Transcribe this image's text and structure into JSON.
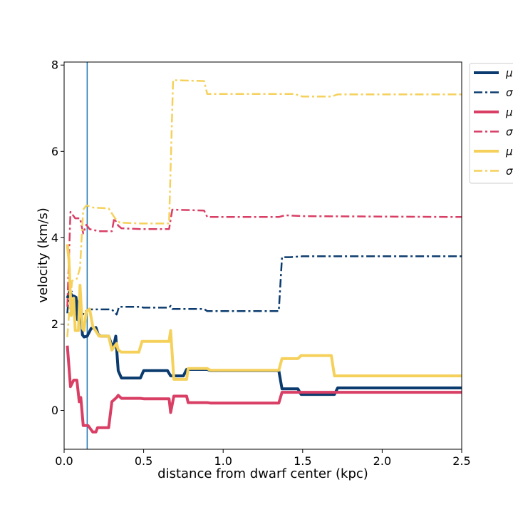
{
  "chart_data": {
    "type": "line",
    "title": "",
    "xlabel": "distance from dwarf center (kpc)",
    "ylabel": "velocity (km/s)",
    "xlim": [
      0.0,
      2.5
    ],
    "ylim": [
      -0.9,
      8.07
    ],
    "xticks": [
      0.0,
      0.5,
      1.0,
      1.5,
      2.0,
      2.5
    ],
    "xtick_labels": [
      "0.0",
      "0.5",
      "1.0",
      "1.5",
      "2.0",
      "2.5"
    ],
    "yticks": [
      0,
      2,
      4,
      6,
      8
    ],
    "ytick_labels": [
      "0",
      "2",
      "4",
      "6",
      "8"
    ],
    "grid": false,
    "legend_position": "outside right, top",
    "vertical_line": {
      "x": 0.145,
      "color": "#1f77b4"
    },
    "series": [
      {
        "name": "μ",
        "color": "#0b3b6e",
        "style": "solid",
        "width": 4,
        "points": [
          [
            0.02,
            2.6
          ],
          [
            0.035,
            2.75
          ],
          [
            0.05,
            2.65
          ],
          [
            0.06,
            2.65
          ],
          [
            0.075,
            2.62
          ],
          [
            0.085,
            2.1
          ],
          [
            0.095,
            2.55
          ],
          [
            0.105,
            2.35
          ],
          [
            0.115,
            1.75
          ],
          [
            0.125,
            1.7
          ],
          [
            0.145,
            1.72
          ],
          [
            0.17,
            1.9
          ],
          [
            0.2,
            1.92
          ],
          [
            0.215,
            1.75
          ],
          [
            0.23,
            1.72
          ],
          [
            0.28,
            1.72
          ],
          [
            0.3,
            1.5
          ],
          [
            0.315,
            1.55
          ],
          [
            0.325,
            1.72
          ],
          [
            0.34,
            0.92
          ],
          [
            0.36,
            0.75
          ],
          [
            0.48,
            0.75
          ],
          [
            0.5,
            0.92
          ],
          [
            0.65,
            0.92
          ],
          [
            0.67,
            0.8
          ],
          [
            0.75,
            0.8
          ],
          [
            0.77,
            0.95
          ],
          [
            0.9,
            0.95
          ],
          [
            0.92,
            0.92
          ],
          [
            1.35,
            0.92
          ],
          [
            1.37,
            0.5
          ],
          [
            1.47,
            0.5
          ],
          [
            1.49,
            0.37
          ],
          [
            1.7,
            0.37
          ],
          [
            1.72,
            0.52
          ],
          [
            2.5,
            0.52
          ]
        ]
      },
      {
        "name": "σ",
        "color": "#0b3b6e",
        "style": "dashdot",
        "width": 2.5,
        "points": [
          [
            0.02,
            2.25
          ],
          [
            0.03,
            2.75
          ],
          [
            0.05,
            2.75
          ],
          [
            0.06,
            2.4
          ],
          [
            0.08,
            2.35
          ],
          [
            0.11,
            2.1
          ],
          [
            0.125,
            2.3
          ],
          [
            0.145,
            2.3
          ],
          [
            0.16,
            2.34
          ],
          [
            0.3,
            2.34
          ],
          [
            0.33,
            2.22
          ],
          [
            0.345,
            2.4
          ],
          [
            0.48,
            2.4
          ],
          [
            0.5,
            2.38
          ],
          [
            0.66,
            2.38
          ],
          [
            0.67,
            2.42
          ],
          [
            0.68,
            2.35
          ],
          [
            0.88,
            2.35
          ],
          [
            0.9,
            2.3
          ],
          [
            1.35,
            2.3
          ],
          [
            1.37,
            3.55
          ],
          [
            1.42,
            3.55
          ],
          [
            1.5,
            3.57
          ],
          [
            2.5,
            3.57
          ]
        ]
      },
      {
        "name": "μ",
        "color": "#d93f65",
        "style": "solid",
        "width": 4,
        "points": [
          [
            0.02,
            1.5
          ],
          [
            0.04,
            0.55
          ],
          [
            0.06,
            0.7
          ],
          [
            0.08,
            0.7
          ],
          [
            0.095,
            0.2
          ],
          [
            0.105,
            0.3
          ],
          [
            0.12,
            -0.35
          ],
          [
            0.15,
            -0.35
          ],
          [
            0.18,
            -0.5
          ],
          [
            0.2,
            -0.5
          ],
          [
            0.21,
            -0.4
          ],
          [
            0.28,
            -0.4
          ],
          [
            0.3,
            0.2
          ],
          [
            0.33,
            0.3
          ],
          [
            0.34,
            0.35
          ],
          [
            0.36,
            0.28
          ],
          [
            0.48,
            0.28
          ],
          [
            0.5,
            0.27
          ],
          [
            0.66,
            0.27
          ],
          [
            0.67,
            -0.05
          ],
          [
            0.69,
            0.33
          ],
          [
            0.77,
            0.33
          ],
          [
            0.78,
            0.18
          ],
          [
            0.9,
            0.18
          ],
          [
            0.92,
            0.17
          ],
          [
            1.35,
            0.17
          ],
          [
            1.37,
            0.42
          ],
          [
            2.5,
            0.42
          ]
        ]
      },
      {
        "name": "σ",
        "color": "#d93f65",
        "style": "dashdot",
        "width": 2.5,
        "points": [
          [
            0.02,
            2.4
          ],
          [
            0.04,
            4.6
          ],
          [
            0.07,
            4.45
          ],
          [
            0.1,
            4.45
          ],
          [
            0.12,
            4.1
          ],
          [
            0.14,
            4.3
          ],
          [
            0.16,
            4.2
          ],
          [
            0.22,
            4.15
          ],
          [
            0.3,
            4.15
          ],
          [
            0.315,
            4.45
          ],
          [
            0.34,
            4.28
          ],
          [
            0.36,
            4.22
          ],
          [
            0.48,
            4.2
          ],
          [
            0.66,
            4.2
          ],
          [
            0.68,
            4.65
          ],
          [
            0.88,
            4.63
          ],
          [
            0.9,
            4.48
          ],
          [
            1.35,
            4.48
          ],
          [
            1.39,
            4.52
          ],
          [
            1.5,
            4.5
          ],
          [
            2.5,
            4.48
          ]
        ]
      },
      {
        "name": "μ",
        "color": "#f5d15c",
        "style": "solid",
        "width": 4,
        "points": [
          [
            0.02,
            3.85
          ],
          [
            0.03,
            3.5
          ],
          [
            0.045,
            2.2
          ],
          [
            0.06,
            2.6
          ],
          [
            0.07,
            1.85
          ],
          [
            0.09,
            1.85
          ],
          [
            0.1,
            2.9
          ],
          [
            0.115,
            1.9
          ],
          [
            0.125,
            1.85
          ],
          [
            0.14,
            2.3
          ],
          [
            0.16,
            2.35
          ],
          [
            0.18,
            1.95
          ],
          [
            0.22,
            1.72
          ],
          [
            0.28,
            1.72
          ],
          [
            0.3,
            1.4
          ],
          [
            0.33,
            1.55
          ],
          [
            0.34,
            1.4
          ],
          [
            0.36,
            1.35
          ],
          [
            0.47,
            1.35
          ],
          [
            0.49,
            1.6
          ],
          [
            0.66,
            1.6
          ],
          [
            0.67,
            1.85
          ],
          [
            0.69,
            0.72
          ],
          [
            0.77,
            0.72
          ],
          [
            0.78,
            0.97
          ],
          [
            0.9,
            0.97
          ],
          [
            0.92,
            0.93
          ],
          [
            1.35,
            0.93
          ],
          [
            1.37,
            1.2
          ],
          [
            1.47,
            1.2
          ],
          [
            1.49,
            1.27
          ],
          [
            1.68,
            1.27
          ],
          [
            1.7,
            0.8
          ],
          [
            2.5,
            0.8
          ]
        ]
      },
      {
        "name": "σ",
        "color": "#f5d15c",
        "style": "dashdot",
        "width": 2.5,
        "points": [
          [
            0.02,
            1.7
          ],
          [
            0.03,
            2.2
          ],
          [
            0.05,
            3.0
          ],
          [
            0.08,
            3.05
          ],
          [
            0.1,
            3.3
          ],
          [
            0.12,
            4.65
          ],
          [
            0.14,
            4.75
          ],
          [
            0.18,
            4.7
          ],
          [
            0.28,
            4.68
          ],
          [
            0.32,
            4.45
          ],
          [
            0.35,
            4.35
          ],
          [
            0.48,
            4.33
          ],
          [
            0.66,
            4.33
          ],
          [
            0.685,
            7.65
          ],
          [
            0.88,
            7.63
          ],
          [
            0.9,
            7.33
          ],
          [
            1.45,
            7.33
          ],
          [
            1.5,
            7.27
          ],
          [
            1.68,
            7.27
          ],
          [
            1.72,
            7.32
          ],
          [
            2.5,
            7.32
          ]
        ]
      }
    ]
  }
}
